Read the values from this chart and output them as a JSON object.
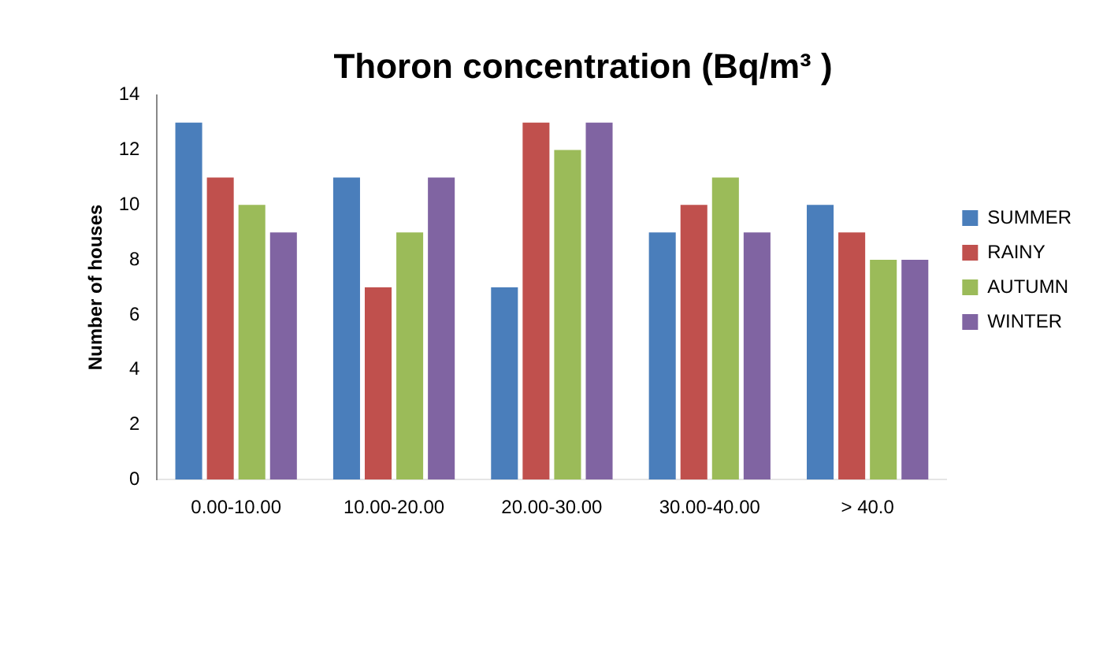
{
  "chart_data": {
    "type": "bar",
    "title": "Thoron concentration (Bq/m³ )",
    "ylabel": "Number of houses",
    "categories": [
      "0.00-10.00",
      "10.00-20.00",
      "20.00-30.00",
      "30.00-40.00",
      "> 40.0"
    ],
    "series": [
      {
        "name": "SUMMER",
        "color": "#4a7ebb",
        "values": [
          13,
          11,
          7,
          9,
          10
        ]
      },
      {
        "name": "RAINY",
        "color": "#c0504d",
        "values": [
          11,
          7,
          13,
          10,
          9
        ]
      },
      {
        "name": "AUTUMN",
        "color": "#9bbb59",
        "values": [
          10,
          9,
          12,
          11,
          8
        ]
      },
      {
        "name": "WINTER",
        "color": "#8064a2",
        "values": [
          9,
          11,
          13,
          9,
          8
        ]
      }
    ],
    "ylim": [
      0,
      14
    ],
    "yticks": [
      0,
      2,
      4,
      6,
      8,
      10,
      12,
      14
    ],
    "grid": false,
    "legend": "right"
  }
}
